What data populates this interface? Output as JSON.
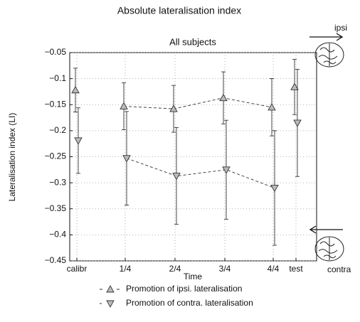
{
  "chart_data": {
    "type": "errorbar",
    "title": "Absolute lateralisation index",
    "subtitle": "All subjects",
    "y_label": "Lateralisation index (LI)",
    "x_label": "Time",
    "annotations": [
      "ipsi",
      "contra"
    ],
    "categories": [
      "calibr",
      "1/4",
      "2/4",
      "3/4",
      "4/4",
      "test"
    ],
    "ylim": [
      -0.45,
      -0.05
    ],
    "yticks": [
      {
        "value": -0.05,
        "label": "−0.05"
      },
      {
        "value": -0.1,
        "label": "−0.1"
      },
      {
        "value": -0.15,
        "label": "−0.15"
      },
      {
        "value": -0.2,
        "label": "−0.2"
      },
      {
        "value": -0.25,
        "label": "−0.25"
      },
      {
        "value": -0.3,
        "label": "−0.3"
      },
      {
        "value": -0.35,
        "label": "−0.35"
      },
      {
        "value": -0.4,
        "label": "−0.4"
      },
      {
        "value": -0.45,
        "label": "−0.45"
      }
    ],
    "grid": true,
    "series": [
      {
        "name": "Promotion of ipsi. lateralisation",
        "marker": "triangle-up",
        "color": "#bbbbbb",
        "values": [
          -0.122,
          -0.153,
          -0.158,
          -0.137,
          -0.155,
          -0.116
        ],
        "errors": [
          0.042,
          0.045,
          0.045,
          0.05,
          0.055,
          0.053
        ]
      },
      {
        "name": "Promotion of contra. lateralisation",
        "marker": "triangle-down",
        "color": "#bbbbbb",
        "values": [
          -0.219,
          -0.253,
          -0.287,
          -0.275,
          -0.31,
          -0.185
        ],
        "errors": [
          0.063,
          0.09,
          0.093,
          0.095,
          0.11,
          0.103
        ]
      }
    ]
  }
}
